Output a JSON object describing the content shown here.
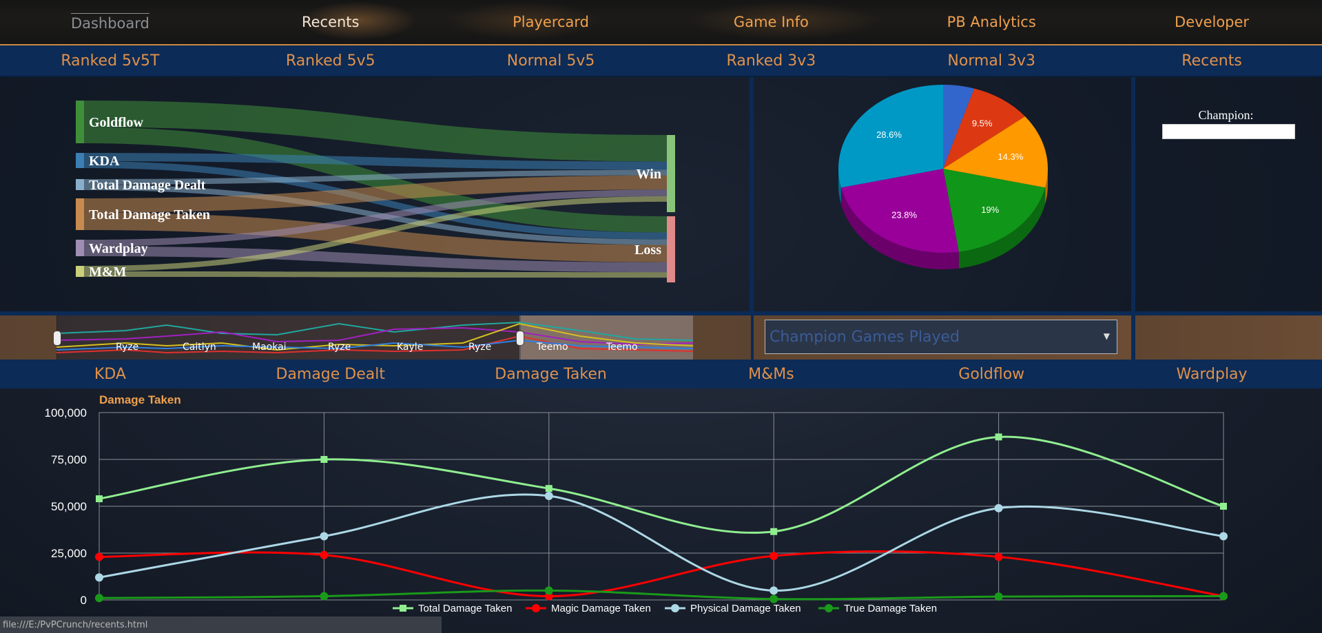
{
  "top_nav": {
    "items": [
      {
        "label": "Dashboard"
      },
      {
        "label": "Recents"
      },
      {
        "label": "Playercard"
      },
      {
        "label": "Game Info"
      },
      {
        "label": "PB Analytics"
      },
      {
        "label": "Developer"
      }
    ],
    "active": "Dashboard"
  },
  "queue_nav": {
    "items": [
      {
        "label": "Ranked 5v5T"
      },
      {
        "label": "Ranked 5v5"
      },
      {
        "label": "Normal 5v5"
      },
      {
        "label": "Ranked 3v3"
      },
      {
        "label": "Normal 3v3"
      },
      {
        "label": "Recents"
      }
    ]
  },
  "sankey": {
    "sources": [
      {
        "label": "Goldflow",
        "color": "#3f8f3a"
      },
      {
        "label": "KDA",
        "color": "#3b7fb5"
      },
      {
        "label": "Total Damage Dealt",
        "color": "#89aecb"
      },
      {
        "label": "Total Damage Taken",
        "color": "#c78a4f"
      },
      {
        "label": "Wardplay",
        "color": "#9f8db3"
      },
      {
        "label": "M&M",
        "color": "#c9cf7a"
      }
    ],
    "targets": [
      {
        "label": "Win",
        "color": "#8ac47a"
      },
      {
        "label": "Loss",
        "color": "#e08a8a"
      }
    ]
  },
  "pie": {
    "slices": [
      {
        "label": "",
        "value": 4.8,
        "color": "#3366cc"
      },
      {
        "label": "9.5%",
        "value": 9.5,
        "color": "#dc3912"
      },
      {
        "label": "14.3%",
        "value": 14.3,
        "color": "#ff9900"
      },
      {
        "label": "19%",
        "value": 19.0,
        "color": "#109618"
      },
      {
        "label": "23.8%",
        "value": 23.8,
        "color": "#990099"
      },
      {
        "label": "28.6%",
        "value": 28.6,
        "color": "#0099c6"
      }
    ]
  },
  "timeline": {
    "labels": [
      "Ryze",
      "Caitlyn",
      "Maokai",
      "Ryze",
      "Kayle",
      "Ryze",
      "Teemo",
      "Teemo"
    ]
  },
  "dropdown": {
    "selected": "Champion Games Played"
  },
  "champion_filter": {
    "label": "Champion:",
    "value": ""
  },
  "stat_tabs": {
    "items": [
      {
        "label": "KDA"
      },
      {
        "label": "Damage Dealt"
      },
      {
        "label": "Damage Taken"
      },
      {
        "label": "M&Ms"
      },
      {
        "label": "Goldflow"
      },
      {
        "label": "Wardplay"
      }
    ]
  },
  "chart_data": {
    "type": "line",
    "title": "Damage Taken",
    "x": [
      1,
      2,
      3,
      4,
      5,
      6
    ],
    "ylim": [
      0,
      100000
    ],
    "yticks": [
      "0",
      "25,000",
      "50,000",
      "75,000",
      "100,000"
    ],
    "grid": true,
    "legend_position": "bottom",
    "series": [
      {
        "name": "Total Damage Taken",
        "color": "#90ee90",
        "marker": "square",
        "values": [
          54000,
          75000,
          59500,
          36500,
          87000,
          50000
        ]
      },
      {
        "name": "Magic Damage Taken",
        "color": "#ff0000",
        "marker": "circle",
        "values": [
          23000,
          24000,
          2000,
          23500,
          23000,
          2000
        ]
      },
      {
        "name": "Physical Damage Taken",
        "color": "#add8e6",
        "marker": "circle",
        "values": [
          12000,
          34000,
          55500,
          5000,
          49000,
          34000
        ]
      },
      {
        "name": "True Damage Taken",
        "color": "#1a9a1a",
        "marker": "circle",
        "values": [
          1000,
          2000,
          5000,
          500,
          1800,
          2000
        ]
      }
    ]
  },
  "status_bar": {
    "text": "file:///E:/PvPCrunch/recents.html"
  }
}
